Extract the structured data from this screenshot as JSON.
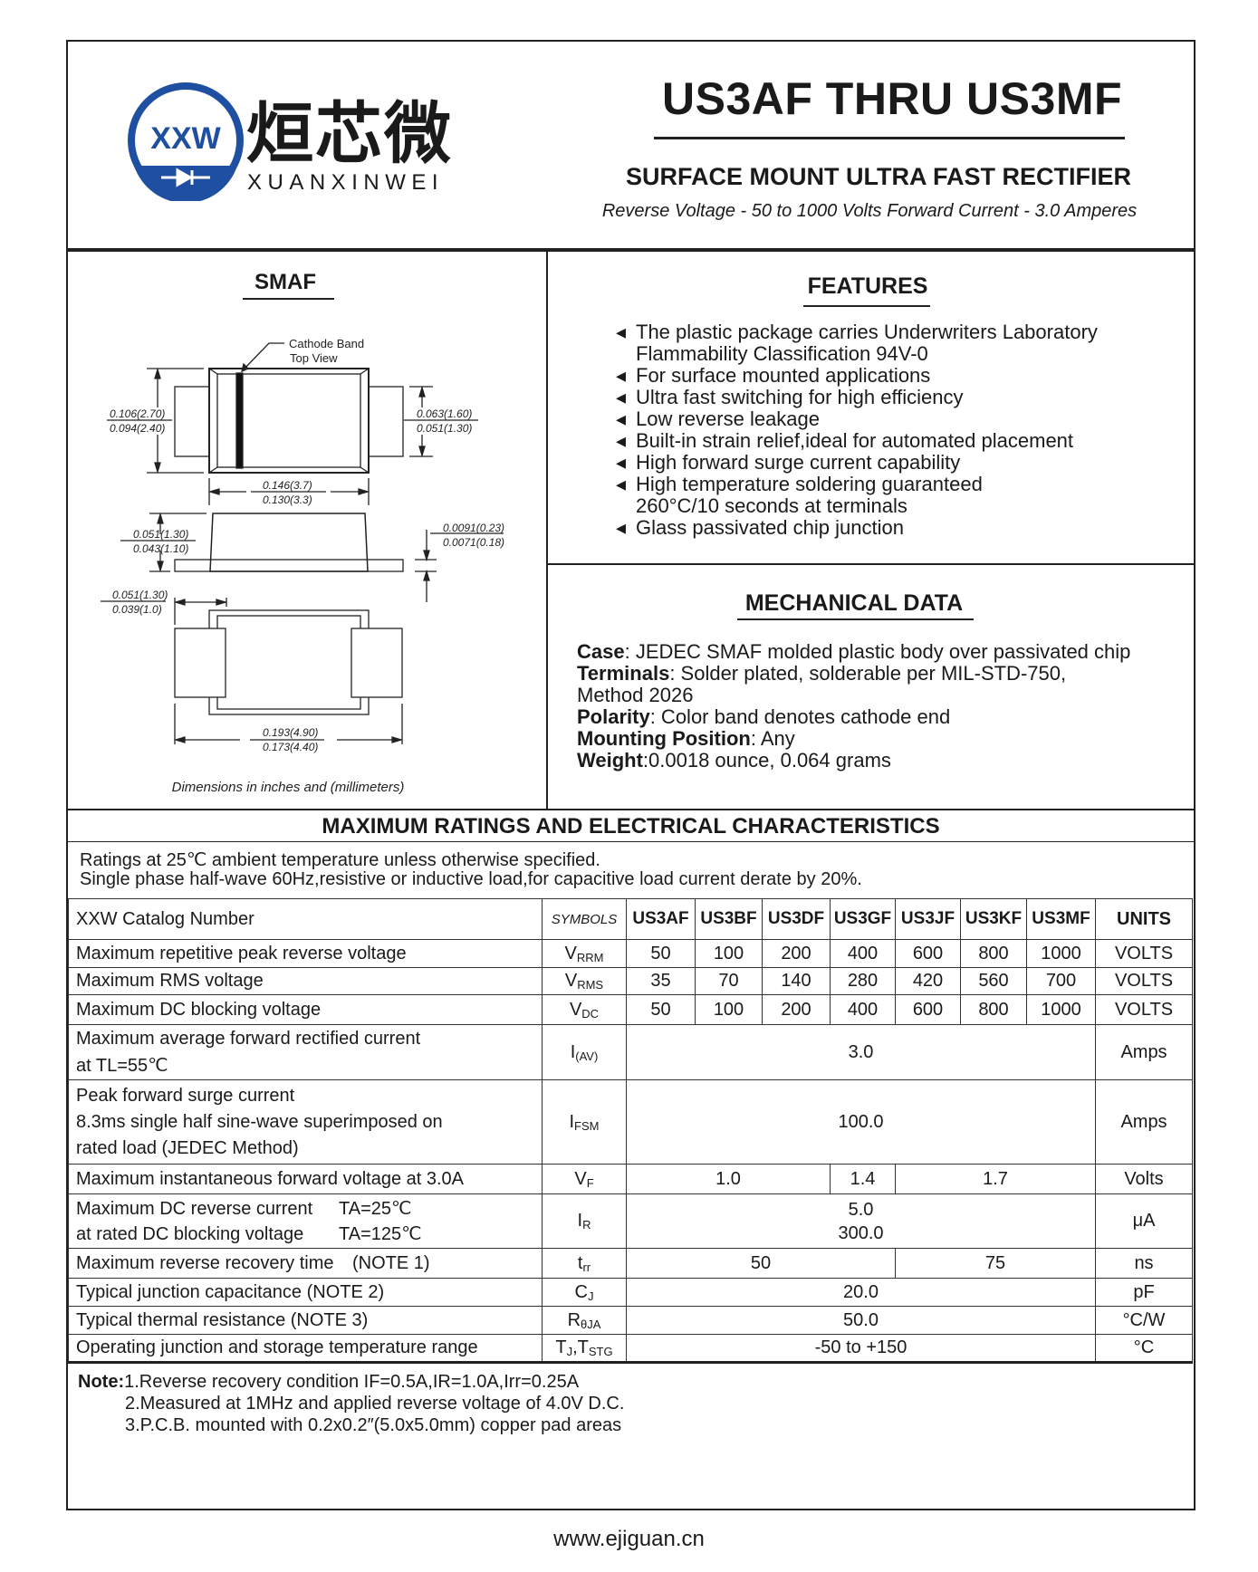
{
  "logo": {
    "mark": "XXW",
    "chinese_name": "烜芯微",
    "latin_name": "XUANXINWEI",
    "colors": {
      "blue": "#1f4fa0",
      "green": "#3aa53a"
    }
  },
  "header": {
    "title": "US3AF THRU US3MF",
    "subtitle": "SURFACE MOUNT ULTRA FAST RECTIFIER",
    "ratings_line": "Reverse Voltage - 50 to 1000 Volts  Forward Current -   3.0 Amperes"
  },
  "package": {
    "title": "SMAF",
    "cathode_label_1": "Cathode Band",
    "cathode_label_2": "Top View",
    "dims": {
      "body_height_max": "0.106(2.70)",
      "body_height_min": "0.094(2.40)",
      "lead_width_max": "0.063(1.60)",
      "lead_width_min": "0.051(1.30)",
      "body_length_max": "0.146(3.7)",
      "body_length_min": "0.130(3.3)",
      "height_max": "0.051(1.30)",
      "height_min": "0.043(1.10)",
      "lead_thick_max": "0.0091(0.23)",
      "lead_thick_min": "0.0071(0.18)",
      "pad_len_max": "0.051(1.30)",
      "pad_len_min": "0.039(1.0)",
      "total_len_max": "0.193(4.90)",
      "total_len_min": "0.173(4.40)"
    },
    "caption": "Dimensions in inches and (millimeters)"
  },
  "features": {
    "title": "FEATURES",
    "items": [
      "The plastic package carries Underwriters Laboratory",
      "Flammability Classification 94V-0",
      "For surface mounted applications",
      "Ultra fast switching for high efficiency",
      "Low reverse leakage",
      "Built-in strain relief,ideal for automated placement",
      "High forward surge current capability",
      "High temperature soldering guaranteed",
      "260°C/10 seconds at terminals",
      "Glass passivated chip junction"
    ]
  },
  "mechanical": {
    "title": "MECHANICAL DATA",
    "case_label": "Case",
    "case_value": ": JEDEC SMAF molded plastic body over passivated chip",
    "terminals_label": "Terminals",
    "terminals_value": ": Solder plated, solderable per MIL-STD-750,",
    "terminals_value_2": "Method 2026",
    "polarity_label": "Polarity",
    "polarity_value": ": Color band denotes cathode end",
    "mounting_label": "Mounting Position",
    "mounting_value": ": Any",
    "weight_label": "Weight",
    "weight_value": ":0.0018 ounce, 0.064 grams"
  },
  "ratings": {
    "title": "MAXIMUM RATINGS AND ELECTRICAL CHARACTERISTICS",
    "note_1": "Ratings at 25℃ ambient temperature unless otherwise specified.",
    "note_2": "Single phase half-wave 60Hz,resistive or inductive load,for capacitive load current derate by 20%."
  },
  "table": {
    "header": {
      "param": "XXW Catalog  Number",
      "symbols": "SYMBOLS",
      "parts": [
        "US3AF",
        "US3BF",
        "US3DF",
        "US3GF",
        "US3JF",
        "US3KF",
        "US3MF"
      ],
      "units": "UNITS"
    },
    "vrrm": {
      "param": "Maximum repetitive peak reverse voltage",
      "sym": "V",
      "sub": "RRM",
      "values": [
        "50",
        "100",
        "200",
        "400",
        "600",
        "800",
        "1000"
      ],
      "unit": "VOLTS"
    },
    "vrms": {
      "param": "Maximum RMS voltage",
      "sym": "V",
      "sub": "RMS",
      "values": [
        "35",
        "70",
        "140",
        "280",
        "420",
        "560",
        "700"
      ],
      "unit": "VOLTS"
    },
    "vdc": {
      "param": "Maximum DC blocking voltage",
      "sym": "V",
      "sub": "DC",
      "values": [
        "50",
        "100",
        "200",
        "400",
        "600",
        "800",
        "1000"
      ],
      "unit": "VOLTS"
    },
    "iav": {
      "param_1": "Maximum average forward rectified current",
      "param_2": "at TL=55℃",
      "sym": "I",
      "sub": "(AV)",
      "value": "3.0",
      "unit": "Amps"
    },
    "ifsm": {
      "param_1": "Peak forward surge current",
      "param_2": "8.3ms single half sine-wave superimposed on",
      "param_3": "rated load (JEDEC Method)",
      "sym": "I",
      "sub": "FSM",
      "value": "100.0",
      "unit": "Amps"
    },
    "vf": {
      "param": "Maximum instantaneous forward voltage at 3.0A",
      "sym": "V",
      "sub": "F",
      "value_a": "1.0",
      "value_b": "1.4",
      "value_c": "1.7",
      "unit": "Volts"
    },
    "ir": {
      "param_1": "Maximum DC reverse current",
      "cond_1": "TA=25℃",
      "param_2": "at rated DC blocking voltage",
      "cond_2": "TA=125℃",
      "sym": "I",
      "sub": "R",
      "value_1": "5.0",
      "value_2": "300.0",
      "unit": "μA"
    },
    "trr": {
      "param": "Maximum reverse recovery time",
      "note": "(NOTE 1)",
      "sym": "t",
      "sub": "rr",
      "value_a": "50",
      "value_b": "75",
      "unit": "ns"
    },
    "cj": {
      "param": "Typical junction capacitance (NOTE 2)",
      "sym": "C",
      "sub": "J",
      "value": "20.0",
      "unit": "pF"
    },
    "rth": {
      "param": "Typical thermal resistance (NOTE 3)",
      "sym": "R",
      "sub": "θJA",
      "value": "50.0",
      "unit": "°C/W"
    },
    "tj": {
      "param": "Operating junction and storage temperature range",
      "sym": "T",
      "sub": "J",
      "sym2": ",T",
      "sub2": "STG",
      "value": "-50 to +150",
      "unit": "°C"
    }
  },
  "notes": {
    "label": "Note:",
    "items": [
      "1.Reverse recovery condition IF=0.5A,IR=1.0A,Irr=0.25A",
      "2.Measured at 1MHz and applied reverse voltage of 4.0V D.C.",
      "3.P.C.B. mounted with 0.2x0.2″(5.0x5.0mm) copper pad areas"
    ]
  },
  "footer": {
    "url": "www.ejiguan.cn"
  }
}
